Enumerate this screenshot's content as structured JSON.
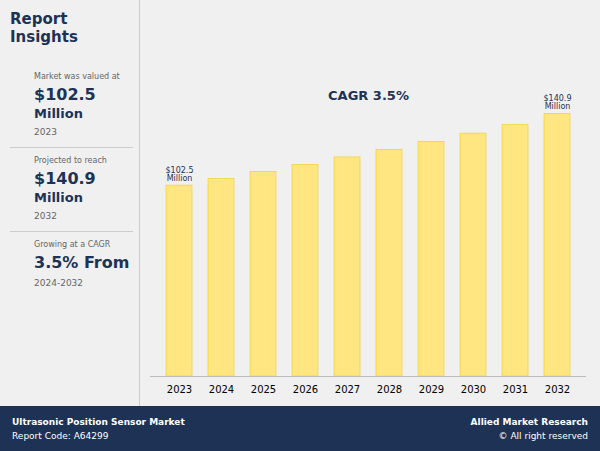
{
  "chart_data": {
    "type": "bar",
    "title": "Report Insights",
    "categories": [
      "2023",
      "2024",
      "2025",
      "2026",
      "2027",
      "2028",
      "2029",
      "2030",
      "2031",
      "2032"
    ],
    "values": [
      102.5,
      106.1,
      109.8,
      113.6,
      117.6,
      121.7,
      126.0,
      130.4,
      135.0,
      140.9
    ],
    "color": "#FFE680",
    "ylim": [
      0,
      175
    ],
    "tick_labels": "x",
    "grid": false,
    "annotations": [
      {
        "text": "$102.5\nMillion",
        "x": "2023",
        "y": 102.5
      },
      {
        "text": "$140.9\nMillion",
        "x": "2032",
        "y": 140.9
      },
      {
        "text": "CAGR 3.5%"
      }
    ],
    "panel": [
      {
        "small": "Market was valued at",
        "big": "$102.5",
        "unit": "Million",
        "year": "2023"
      },
      {
        "small": "Projected to reach",
        "big": "$140.9",
        "unit": "Million",
        "year": "2032"
      },
      {
        "small": "Growing at a CAGR",
        "big": "3.5% From",
        "year": "2024-2032"
      }
    ],
    "footer": [
      [
        "Ultrasonic Position Sensor Market",
        "Report Code: A64299"
      ],
      [
        "Allied Market Research",
        "© All right reserved"
      ]
    ]
  }
}
